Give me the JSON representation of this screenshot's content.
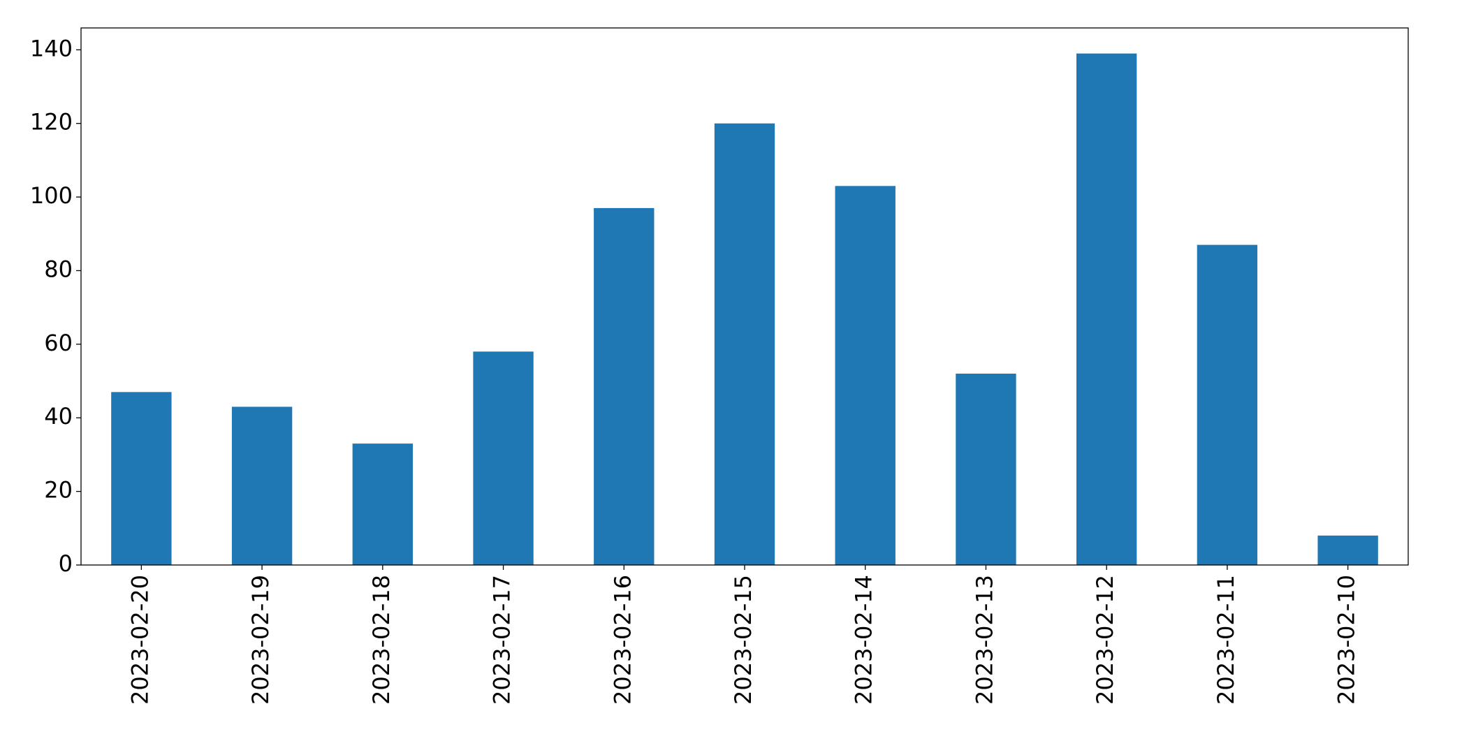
{
  "chart_data": {
    "type": "bar",
    "categories": [
      "2023-02-20",
      "2023-02-19",
      "2023-02-18",
      "2023-02-17",
      "2023-02-16",
      "2023-02-15",
      "2023-02-14",
      "2023-02-13",
      "2023-02-12",
      "2023-02-11",
      "2023-02-10"
    ],
    "values": [
      47,
      43,
      33,
      58,
      97,
      120,
      103,
      52,
      139,
      87,
      8
    ],
    "color": "#1f77b4",
    "ylim": [
      0,
      145.95
    ],
    "yticks": [
      0,
      20,
      40,
      60,
      80,
      100,
      120,
      140
    ],
    "grid": false
  }
}
